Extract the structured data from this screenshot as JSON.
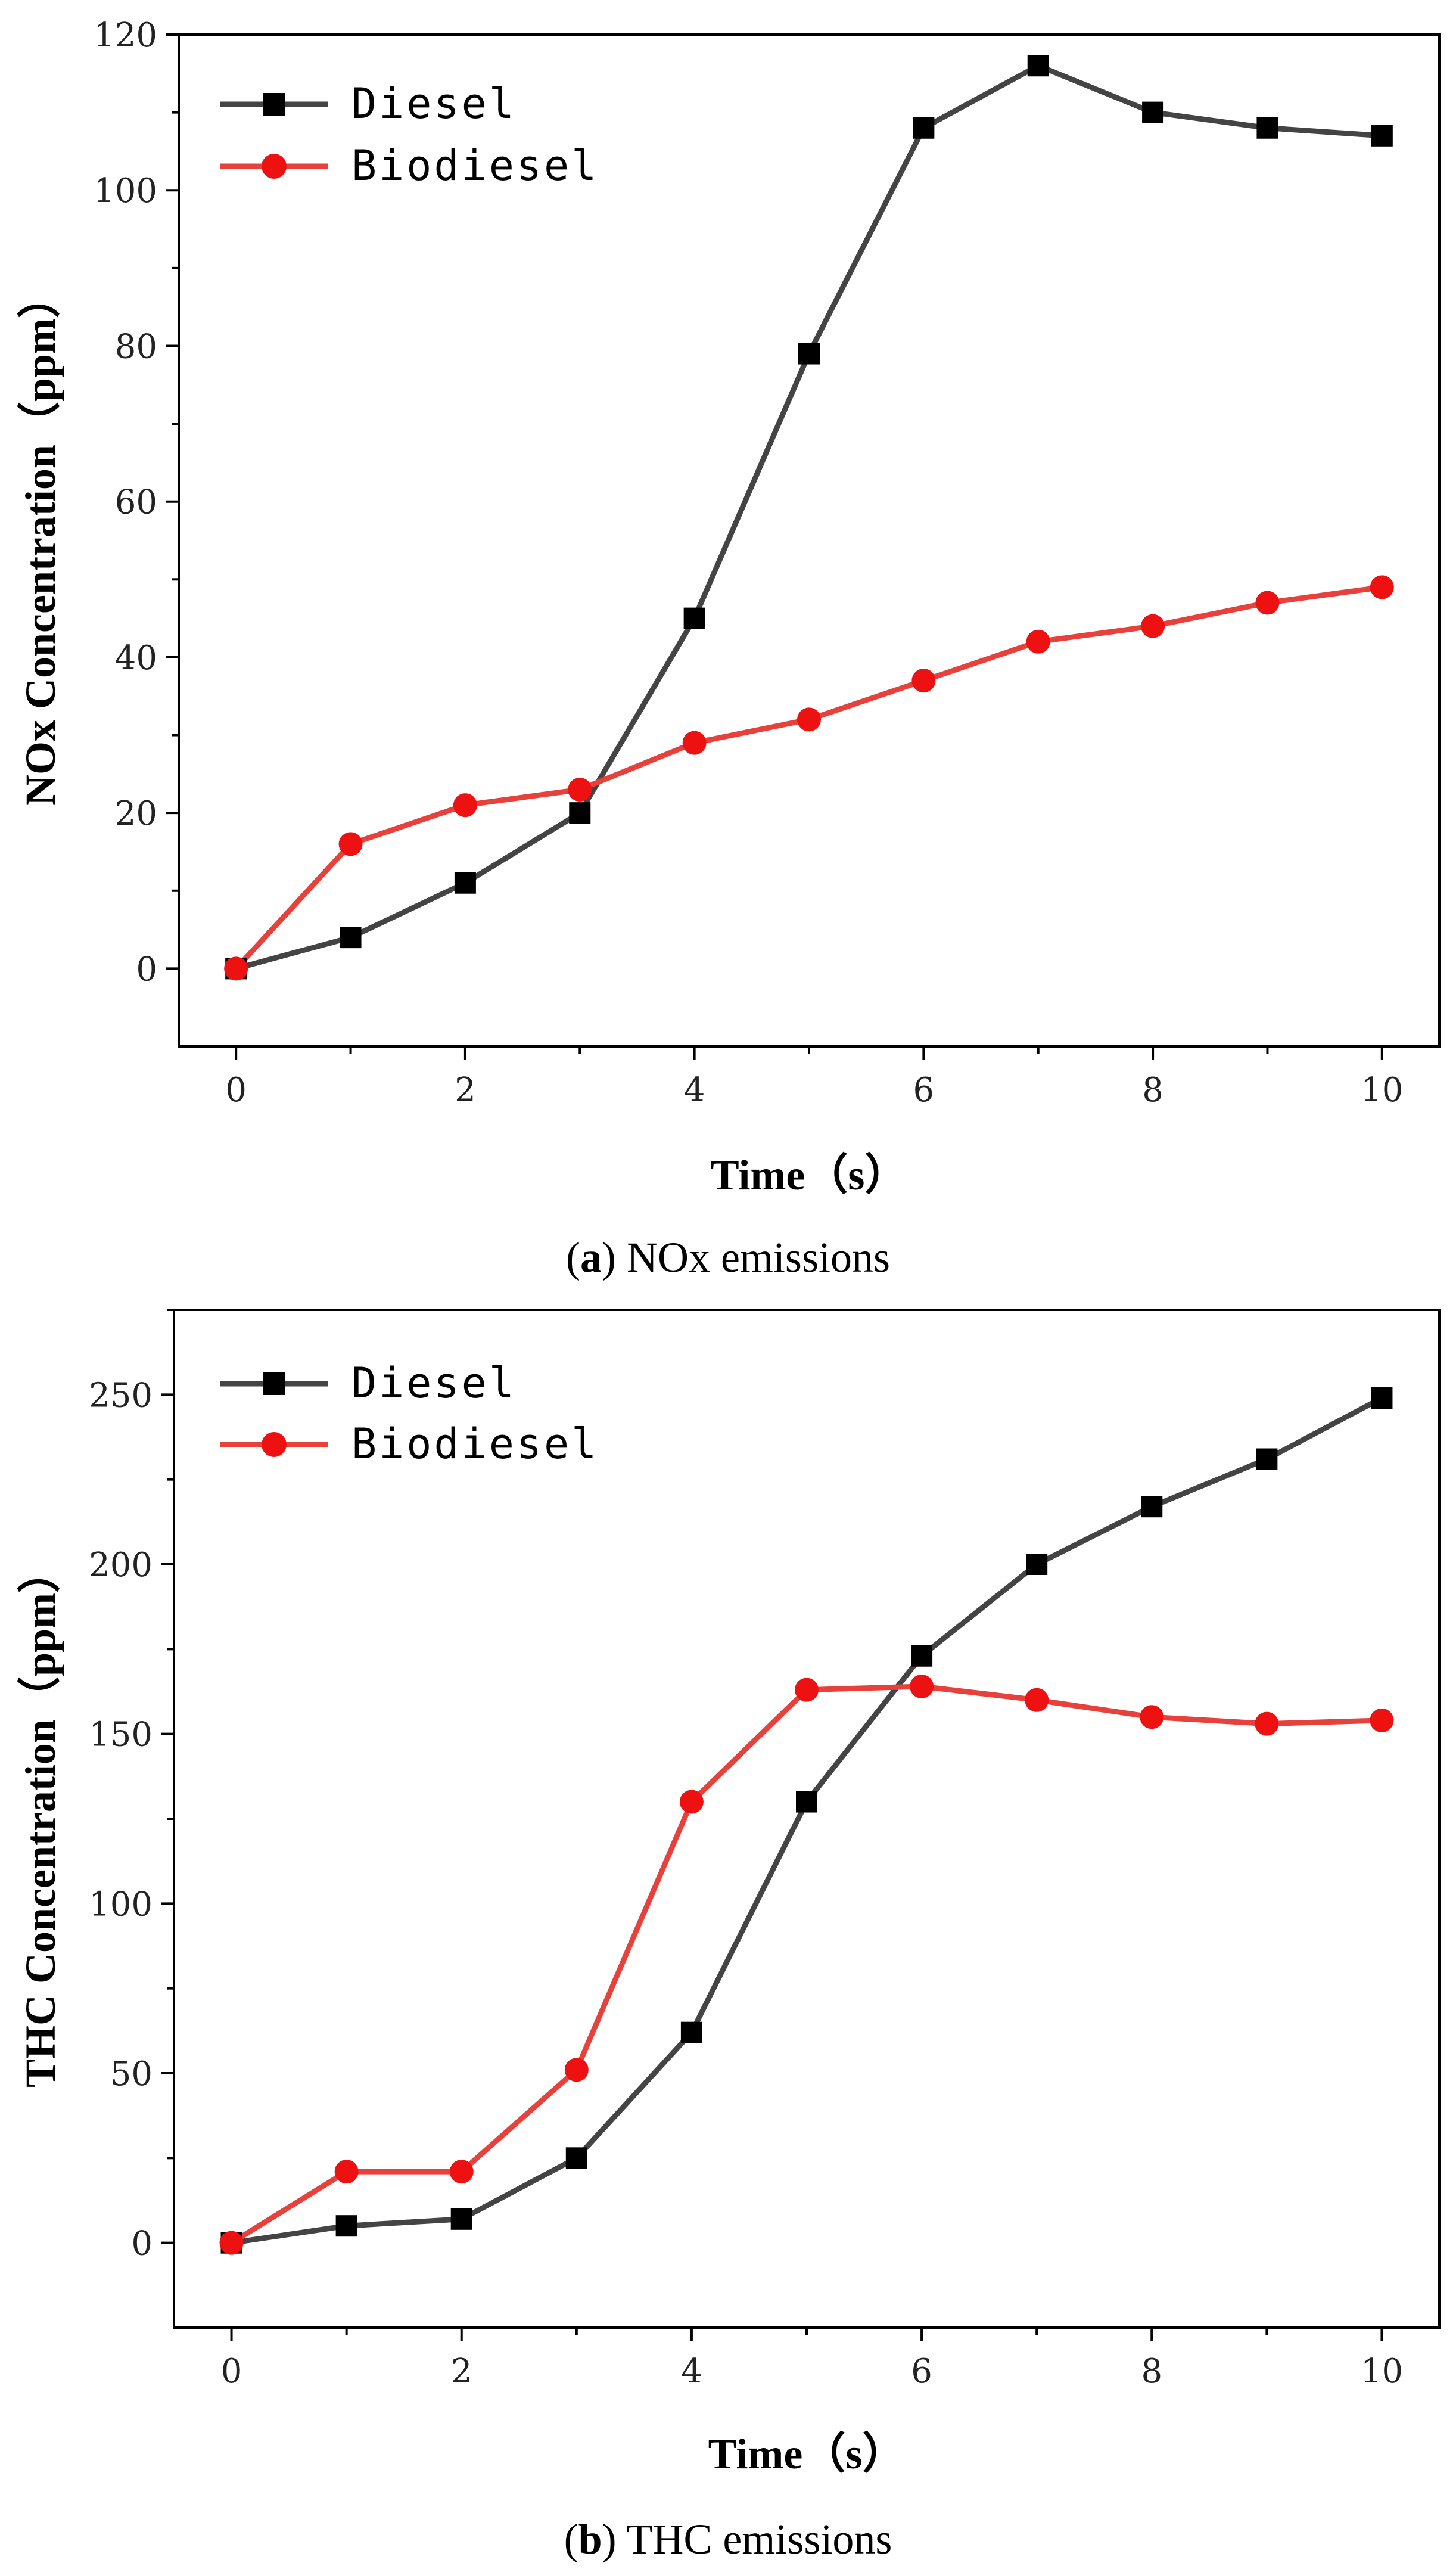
{
  "chart_data": [
    {
      "type": "line",
      "caption_letter": "a",
      "caption_text": "NOx emissions",
      "xlabel": "Time（s）",
      "ylabel": "NOx Concentration（ppm）",
      "x": [
        0,
        1,
        2,
        3,
        4,
        5,
        6,
        7,
        8,
        9,
        10
      ],
      "xlim": [
        -0.5,
        10.5
      ],
      "ylim": [
        -10,
        120
      ],
      "xticks": [
        0,
        2,
        4,
        6,
        8,
        10
      ],
      "yticks": [
        0,
        20,
        40,
        60,
        80,
        100,
        120
      ],
      "legend_position": "top-left",
      "grid": false,
      "series": [
        {
          "name": "Diesel",
          "color": "#444444",
          "marker": "square",
          "marker_color": "#000000",
          "values": [
            0,
            4,
            11,
            20,
            45,
            79,
            108,
            116,
            110,
            108,
            107
          ]
        },
        {
          "name": "Biodiesel",
          "color": "#e8413c",
          "marker": "circle",
          "marker_color": "#ee1111",
          "values": [
            0,
            16,
            21,
            23,
            29,
            32,
            37,
            42,
            44,
            47,
            49
          ]
        }
      ]
    },
    {
      "type": "line",
      "caption_letter": "b",
      "caption_text": "THC emissions",
      "xlabel": "Time（s）",
      "ylabel": "THC Concentration（ppm）",
      "x": [
        0,
        1,
        2,
        3,
        4,
        5,
        6,
        7,
        8,
        9,
        10
      ],
      "xlim": [
        -0.5,
        10.5
      ],
      "ylim": [
        -25,
        275
      ],
      "xticks": [
        0,
        2,
        4,
        6,
        8,
        10
      ],
      "yticks": [
        0,
        50,
        100,
        150,
        200,
        250
      ],
      "legend_position": "top-left",
      "grid": false,
      "series": [
        {
          "name": "Diesel",
          "color": "#444444",
          "marker": "square",
          "marker_color": "#000000",
          "values": [
            0,
            5,
            7,
            25,
            62,
            130,
            173,
            200,
            217,
            231,
            249
          ]
        },
        {
          "name": "Biodiesel",
          "color": "#e8413c",
          "marker": "circle",
          "marker_color": "#ee1111",
          "values": [
            0,
            21,
            21,
            51,
            130,
            163,
            164,
            160,
            155,
            153,
            154
          ]
        }
      ]
    }
  ]
}
